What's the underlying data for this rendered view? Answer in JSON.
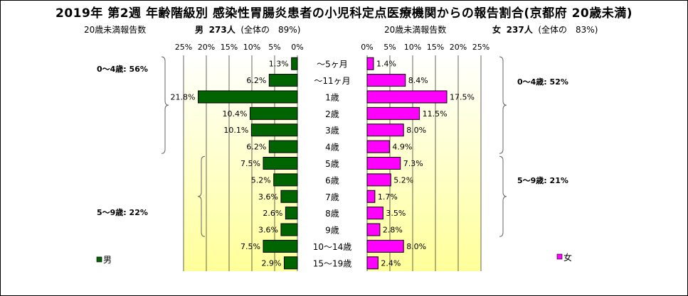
{
  "title": "2019年 第2週 年齢階級別 感染性胃腸炎患者の小児科定点医療機関からの報告割合(京都府 20歳未満)",
  "left_header": {
    "caption": "20歳未満報告数",
    "sex": "男",
    "count": "273人",
    "share": "(全体の　89%)"
  },
  "right_header": {
    "caption": "20歳未満報告数",
    "sex": "女",
    "count": "237人",
    "share": "(全体の　83%)"
  },
  "colors": {
    "male": "#006400",
    "female": "#ff00ff",
    "bg_top": "#ffffff",
    "bg_bottom": "#ffff99"
  },
  "chart_data": {
    "type": "bar",
    "orientation": "horizontal-population-pyramid",
    "categories": [
      "～5ヶ月",
      "～11ヶ月",
      "1歳",
      "2歳",
      "3歳",
      "4歳",
      "5歳",
      "6歳",
      "7歳",
      "8歳",
      "9歳",
      "10～14歳",
      "15～19歳"
    ],
    "xlim": [
      0,
      25
    ],
    "ticks": [
      0,
      5,
      10,
      15,
      20,
      25
    ],
    "tick_labels": [
      "0%",
      "5%",
      "10%",
      "15%",
      "20%",
      "25%"
    ],
    "series": [
      {
        "name": "男",
        "values": [
          1.3,
          6.2,
          21.8,
          10.4,
          10.1,
          6.2,
          7.5,
          5.2,
          3.6,
          2.6,
          3.6,
          7.5,
          2.9
        ]
      },
      {
        "name": "女",
        "values": [
          1.4,
          8.4,
          17.5,
          11.5,
          8.0,
          4.9,
          7.3,
          5.2,
          1.7,
          3.5,
          2.8,
          8.0,
          2.4
        ]
      }
    ],
    "annotations": {
      "male_0_4": "0～4歳: 56%",
      "male_5_9": "5～9歳: 22%",
      "female_0_4": "0～4歳: 52%",
      "female_5_9": "5～9歳: 21%"
    },
    "legend": {
      "male": "男",
      "female": "女",
      "placement": "bottom"
    }
  }
}
